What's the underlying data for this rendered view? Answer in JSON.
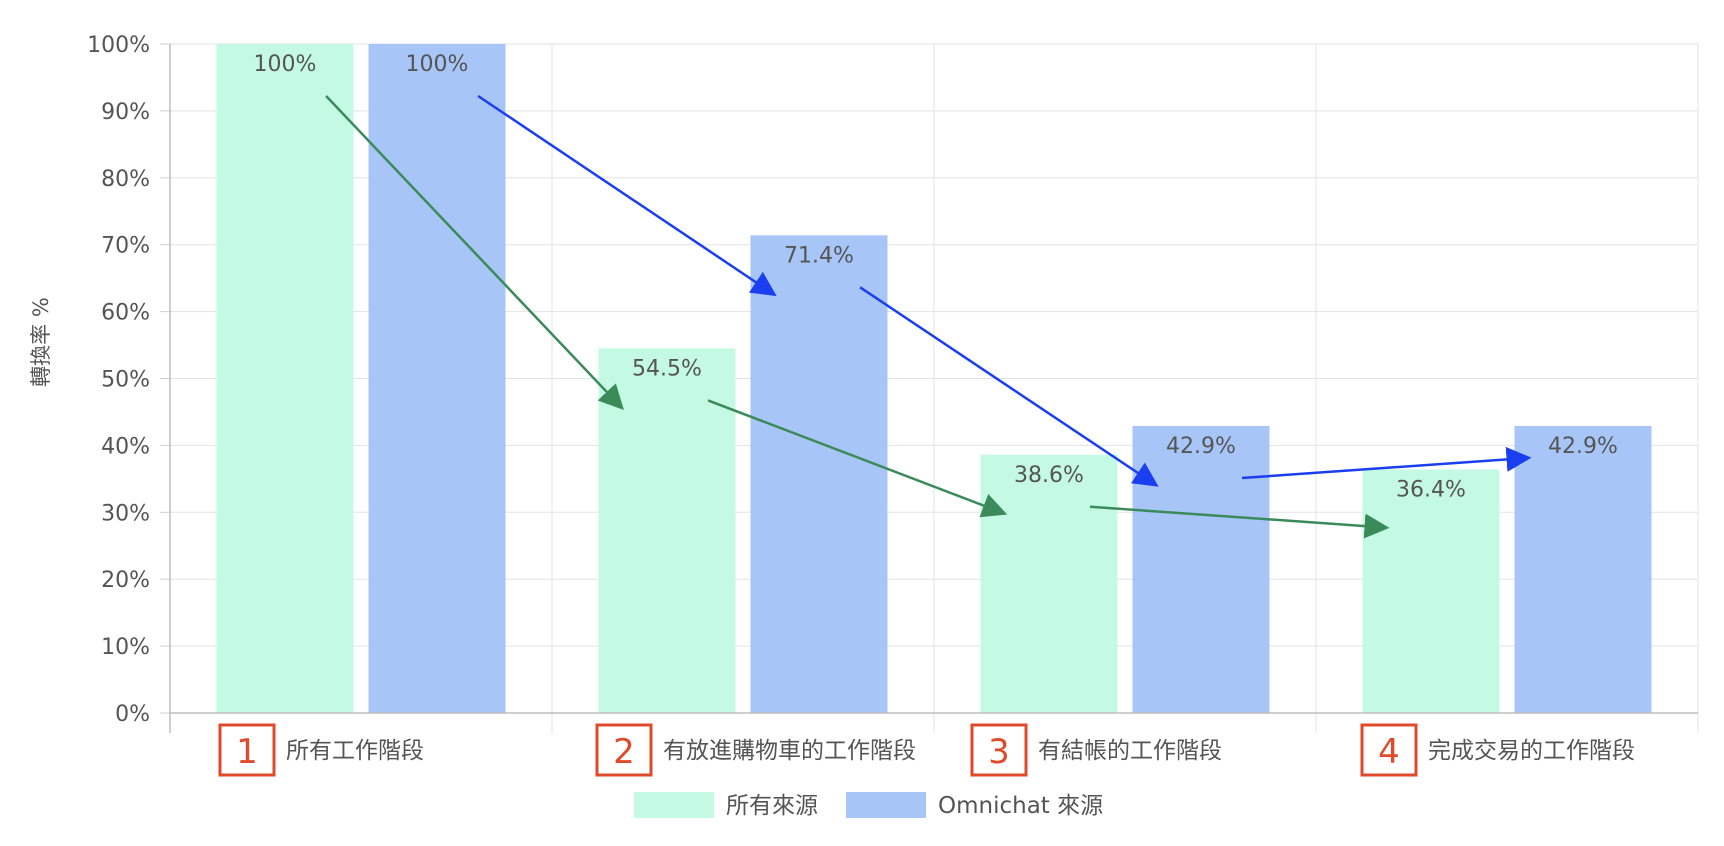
{
  "chart_data": {
    "type": "bar",
    "ylabel": "轉換率 %",
    "ylim": [
      0,
      100
    ],
    "yticks": [
      "0%",
      "10%",
      "20%",
      "30%",
      "40%",
      "50%",
      "60%",
      "70%",
      "80%",
      "90%",
      "100%"
    ],
    "grid": true,
    "legend_position": "bottom",
    "categories": [
      {
        "step": "1",
        "label": "所有工作階段"
      },
      {
        "step": "2",
        "label": "有放進購物車的工作階段"
      },
      {
        "step": "3",
        "label": "有結帳的工作階段"
      },
      {
        "step": "4",
        "label": "完成交易的工作階段"
      }
    ],
    "series": [
      {
        "name": "所有來源",
        "color": "#c4fae3",
        "values": [
          100,
          54.5,
          38.6,
          36.4
        ],
        "labels": [
          "100%",
          "54.5%",
          "38.6%",
          "36.4%"
        ]
      },
      {
        "name": "Omnichat 來源",
        "color": "#a8c5f8",
        "values": [
          100,
          71.4,
          42.9,
          42.9
        ],
        "labels": [
          "100%",
          "71.4%",
          "42.9%",
          "42.9%"
        ]
      }
    ],
    "annotations": {
      "step_badge_color": "#e04a2a",
      "arrows": [
        {
          "series": "所有來源",
          "color": "#3a8a5a",
          "from_category": 0,
          "to_category": 1
        },
        {
          "series": "所有來源",
          "color": "#3a8a5a",
          "from_category": 1,
          "to_category": 2
        },
        {
          "series": "所有來源",
          "color": "#3a8a5a",
          "from_category": 2,
          "to_category": 3
        },
        {
          "series": "Omnichat 來源",
          "color": "#1a3ff0",
          "from_category": 0,
          "to_category": 1
        },
        {
          "series": "Omnichat 來源",
          "color": "#1a3ff0",
          "from_category": 1,
          "to_category": 2
        },
        {
          "series": "Omnichat 來源",
          "color": "#1a3ff0",
          "from_category": 2,
          "to_category": 3
        }
      ]
    }
  }
}
